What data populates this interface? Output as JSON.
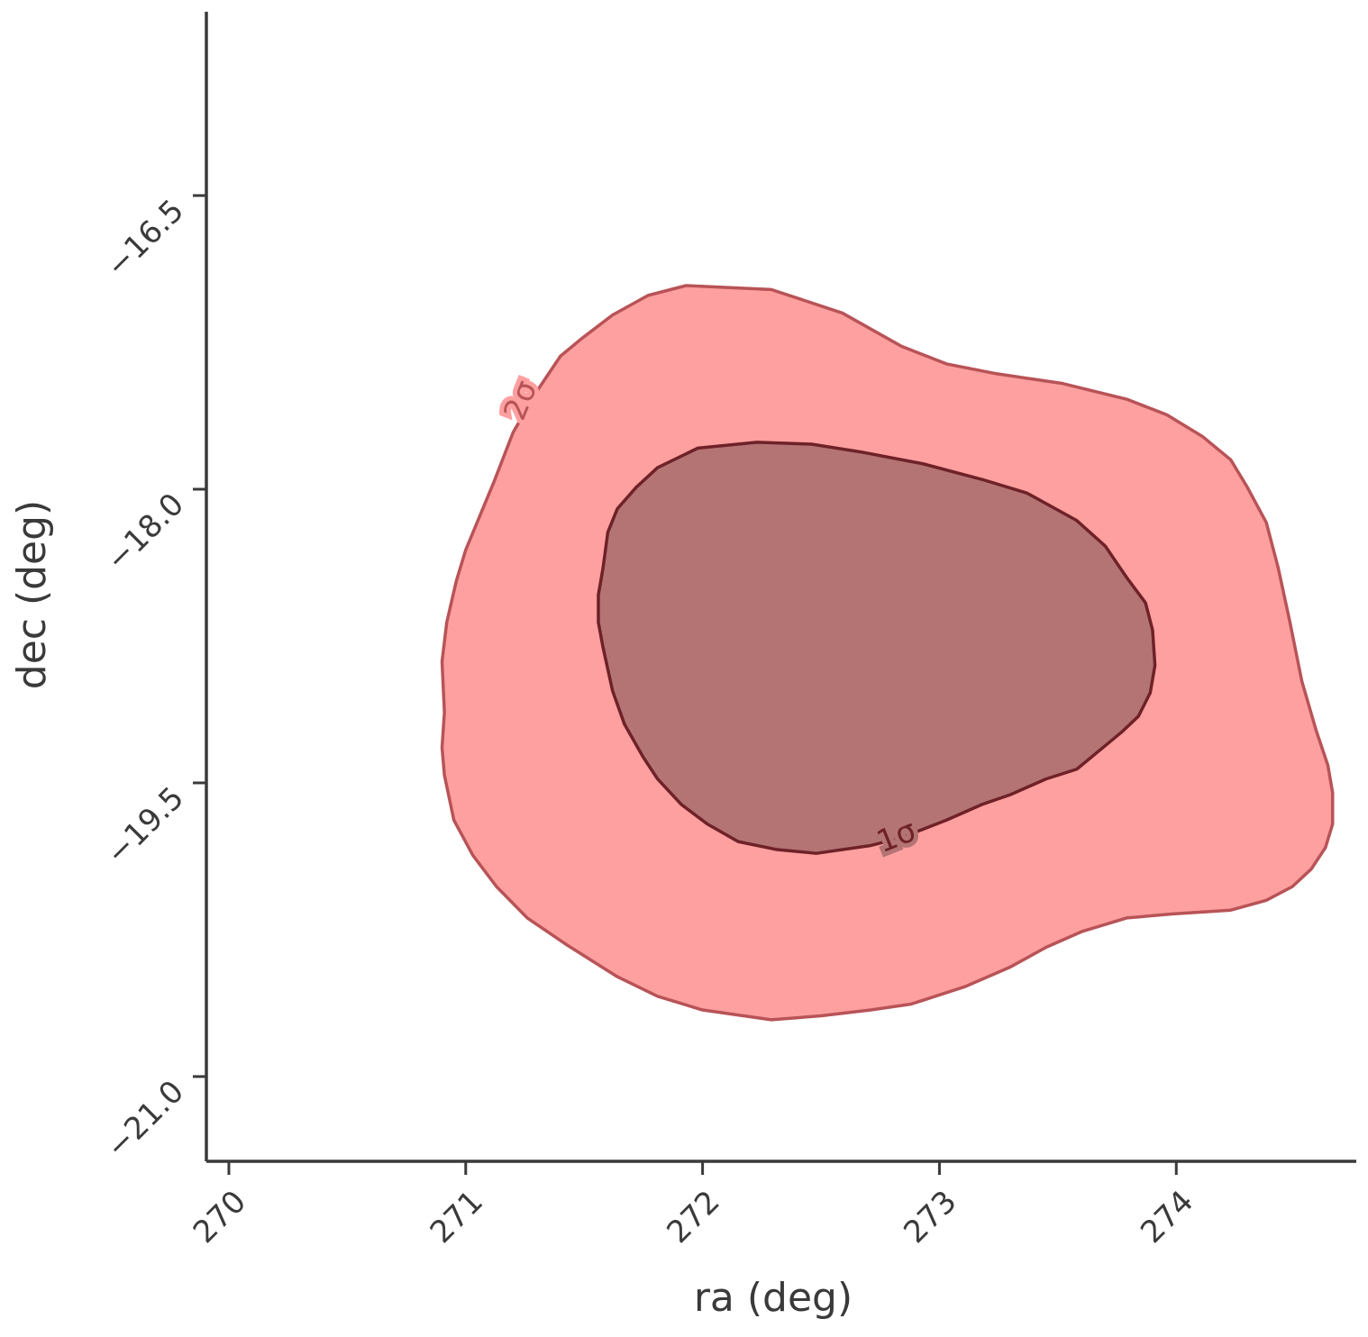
{
  "chart_data": {
    "type": "contour",
    "xlabel": "ra (deg)",
    "ylabel": "dec (deg)",
    "xlim": [
      269.905,
      274.76
    ],
    "ylim": [
      -21.433,
      -15.561
    ],
    "xticks": [
      270,
      271,
      272,
      273,
      274
    ],
    "yticks": [
      {
        "value": -16.5,
        "label": "−16.5"
      },
      {
        "value": -18.0,
        "label": "−18.0"
      },
      {
        "value": -19.5,
        "label": "−19.5"
      },
      {
        "value": -21.0,
        "label": "−21.0"
      }
    ],
    "contours": [
      {
        "label": "2σ",
        "color": "#ffa0a0",
        "edge_color": "#b85357",
        "x": [
          271.93,
          272.29,
          272.59,
          272.84,
          273.03,
          273.24,
          273.52,
          273.79,
          273.96,
          274.11,
          274.23,
          274.3,
          274.38,
          274.43,
          274.48,
          274.53,
          274.59,
          274.64,
          274.66,
          274.66,
          274.63,
          274.57,
          274.49,
          274.38,
          274.23,
          273.98,
          273.79,
          273.6,
          273.45,
          273.3,
          273.11,
          272.88,
          272.71,
          272.5,
          272.29,
          272.0,
          271.81,
          271.64,
          271.43,
          271.26,
          271.13,
          271.03,
          270.95,
          270.91,
          270.9,
          270.91,
          270.9,
          270.92,
          270.96,
          271.0,
          271.12,
          271.2,
          271.3,
          271.4,
          271.49,
          271.62,
          271.77
        ],
        "y": [
          -16.96,
          -16.98,
          -17.1,
          -17.27,
          -17.36,
          -17.41,
          -17.46,
          -17.54,
          -17.62,
          -17.73,
          -17.85,
          -17.99,
          -18.17,
          -18.4,
          -18.68,
          -18.98,
          -19.23,
          -19.41,
          -19.55,
          -19.71,
          -19.83,
          -19.94,
          -20.03,
          -20.1,
          -20.15,
          -20.17,
          -20.19,
          -20.26,
          -20.34,
          -20.44,
          -20.54,
          -20.63,
          -20.66,
          -20.69,
          -20.71,
          -20.66,
          -20.59,
          -20.49,
          -20.33,
          -20.19,
          -20.03,
          -19.87,
          -19.69,
          -19.46,
          -19.32,
          -19.14,
          -18.88,
          -18.68,
          -18.47,
          -18.31,
          -17.96,
          -17.71,
          -17.5,
          -17.32,
          -17.23,
          -17.11,
          -17.01
        ]
      },
      {
        "label": "1σ",
        "color": "#b57474",
        "edge_color": "#6e2228",
        "x": [
          272.23,
          272.46,
          272.67,
          272.93,
          273.18,
          273.37,
          273.58,
          273.7,
          273.79,
          273.87,
          273.9,
          273.91,
          273.89,
          273.84,
          273.77,
          273.7,
          273.58,
          273.45,
          273.3,
          273.18,
          273.03,
          272.84,
          272.71,
          272.48,
          272.31,
          272.15,
          272.02,
          271.91,
          271.81,
          271.75,
          271.67,
          271.62,
          271.58,
          271.56,
          271.56,
          271.58,
          271.6,
          271.64,
          271.72,
          271.81,
          271.98
        ],
        "y": [
          -17.76,
          -17.77,
          -17.81,
          -17.87,
          -17.95,
          -18.02,
          -18.16,
          -18.29,
          -18.45,
          -18.58,
          -18.72,
          -18.9,
          -19.04,
          -19.16,
          -19.24,
          -19.31,
          -19.43,
          -19.48,
          -19.56,
          -19.61,
          -19.69,
          -19.78,
          -19.82,
          -19.86,
          -19.84,
          -19.8,
          -19.71,
          -19.61,
          -19.48,
          -19.37,
          -19.2,
          -19.03,
          -18.81,
          -18.68,
          -18.54,
          -18.4,
          -18.22,
          -18.1,
          -17.99,
          -17.89,
          -17.79
        ]
      }
    ]
  }
}
